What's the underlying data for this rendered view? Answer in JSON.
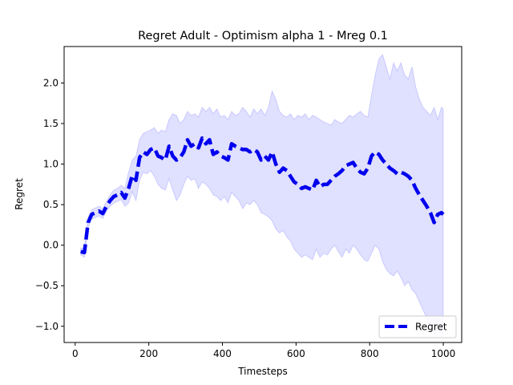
{
  "chart_data": {
    "type": "line",
    "title": "Regret Adult - Optimism alpha 1 - Mreg 0.1",
    "xlabel": "Timesteps",
    "ylabel": "Regret",
    "xlim": [
      -30,
      1050
    ],
    "ylim": [
      -1.2,
      2.45
    ],
    "xticks": [
      0,
      200,
      400,
      600,
      800,
      1000
    ],
    "yticks": [
      -1.0,
      -0.5,
      0.0,
      0.5,
      1.0,
      1.5,
      2.0
    ],
    "xtick_labels": [
      "0",
      "200",
      "400",
      "600",
      "800",
      "1000"
    ],
    "ytick_labels": [
      "−1.0",
      "−0.5",
      "0.0",
      "0.5",
      "1.0",
      "1.5",
      "2.0"
    ],
    "grid": false,
    "legend_position": "lower-right",
    "series": [
      {
        "name": "Regret",
        "color": "#0000ee",
        "style": "dashed",
        "x": [
          15,
          25,
          35,
          45,
          55,
          65,
          75,
          85,
          95,
          105,
          115,
          125,
          135,
          145,
          155,
          165,
          175,
          185,
          195,
          205,
          215,
          225,
          235,
          245,
          255,
          265,
          275,
          285,
          295,
          305,
          315,
          325,
          335,
          345,
          355,
          365,
          375,
          385,
          395,
          405,
          415,
          425,
          435,
          445,
          455,
          465,
          475,
          485,
          495,
          505,
          515,
          525,
          535,
          545,
          555,
          565,
          575,
          585,
          595,
          605,
          615,
          625,
          635,
          645,
          655,
          665,
          675,
          685,
          695,
          705,
          715,
          725,
          735,
          745,
          755,
          765,
          775,
          785,
          795,
          805,
          815,
          825,
          835,
          845,
          855,
          865,
          875,
          885,
          895,
          905,
          915,
          925,
          935,
          945,
          955,
          965,
          975,
          985,
          995,
          1000
        ],
        "values": [
          -0.08,
          -0.09,
          0.28,
          0.38,
          0.4,
          0.42,
          0.39,
          0.48,
          0.55,
          0.6,
          0.62,
          0.65,
          0.58,
          0.7,
          0.86,
          0.8,
          1.08,
          1.15,
          1.12,
          1.18,
          1.2,
          1.1,
          1.08,
          1.05,
          1.22,
          1.1,
          1.05,
          1.08,
          1.15,
          1.3,
          1.22,
          1.25,
          1.2,
          1.32,
          1.25,
          1.3,
          1.12,
          1.15,
          1.1,
          1.08,
          1.05,
          1.25,
          1.22,
          1.2,
          1.18,
          1.18,
          1.15,
          1.18,
          1.15,
          1.05,
          1.1,
          1.05,
          1.15,
          1.0,
          0.9,
          0.95,
          0.92,
          0.85,
          0.78,
          0.75,
          0.7,
          0.72,
          0.7,
          0.68,
          0.8,
          0.72,
          0.75,
          0.75,
          0.8,
          0.85,
          0.88,
          0.92,
          0.98,
          1.0,
          1.02,
          0.95,
          0.9,
          0.88,
          0.95,
          1.1,
          1.15,
          1.12,
          1.05,
          1.0,
          0.95,
          0.92,
          0.88,
          0.9,
          0.88,
          0.85,
          0.8,
          0.7,
          0.62,
          0.55,
          0.48,
          0.4,
          0.28,
          0.38,
          0.4,
          0.38
        ]
      }
    ],
    "band": {
      "color": "#0000ff",
      "opacity": 0.12,
      "upper": [
        -0.04,
        -0.03,
        0.34,
        0.44,
        0.46,
        0.48,
        0.45,
        0.54,
        0.62,
        0.68,
        0.7,
        0.74,
        0.7,
        0.9,
        1.05,
        1.1,
        1.3,
        1.38,
        1.4,
        1.42,
        1.45,
        1.38,
        1.42,
        1.4,
        1.55,
        1.62,
        1.6,
        1.5,
        1.55,
        1.65,
        1.6,
        1.62,
        1.58,
        1.7,
        1.65,
        1.7,
        1.62,
        1.68,
        1.58,
        1.6,
        1.55,
        1.65,
        1.6,
        1.62,
        1.7,
        1.65,
        1.58,
        1.68,
        1.62,
        1.68,
        1.6,
        1.7,
        1.9,
        1.8,
        1.65,
        1.6,
        1.58,
        1.62,
        1.55,
        1.6,
        1.58,
        1.62,
        1.55,
        1.6,
        1.58,
        1.55,
        1.52,
        1.5,
        1.48,
        1.55,
        1.52,
        1.5,
        1.55,
        1.6,
        1.58,
        1.62,
        1.65,
        1.6,
        1.58,
        1.85,
        2.1,
        2.3,
        2.35,
        2.2,
        2.05,
        2.25,
        2.15,
        2.25,
        2.1,
        2.05,
        2.2,
        1.95,
        1.8,
        1.7,
        1.65,
        1.6,
        1.7,
        1.55,
        1.7,
        1.68
      ],
      "lower": [
        -0.12,
        -0.15,
        0.22,
        0.32,
        0.34,
        0.36,
        0.33,
        0.42,
        0.48,
        0.52,
        0.54,
        0.56,
        0.48,
        0.52,
        0.66,
        0.55,
        0.8,
        0.9,
        0.88,
        0.92,
        0.85,
        0.75,
        0.7,
        0.68,
        0.82,
        0.68,
        0.55,
        0.62,
        0.75,
        0.85,
        0.8,
        0.82,
        0.7,
        0.78,
        0.75,
        0.7,
        0.62,
        0.6,
        0.55,
        0.6,
        0.52,
        0.65,
        0.6,
        0.55,
        0.45,
        0.52,
        0.5,
        0.55,
        0.5,
        0.4,
        0.38,
        0.35,
        0.3,
        0.2,
        0.15,
        0.18,
        0.1,
        0.05,
        -0.05,
        -0.1,
        -0.15,
        -0.12,
        -0.15,
        -0.18,
        -0.05,
        -0.15,
        -0.1,
        -0.12,
        -0.05,
        0.0,
        -0.08,
        -0.15,
        -0.05,
        -0.1,
        0.0,
        -0.05,
        -0.12,
        -0.18,
        -0.2,
        -0.1,
        0.0,
        -0.05,
        -0.2,
        -0.3,
        -0.35,
        -0.38,
        -0.32,
        -0.4,
        -0.5,
        -0.45,
        -0.55,
        -0.6,
        -0.7,
        -0.8,
        -0.9,
        -1.0,
        -1.1,
        -1.05,
        -1.1,
        -1.08
      ]
    }
  }
}
